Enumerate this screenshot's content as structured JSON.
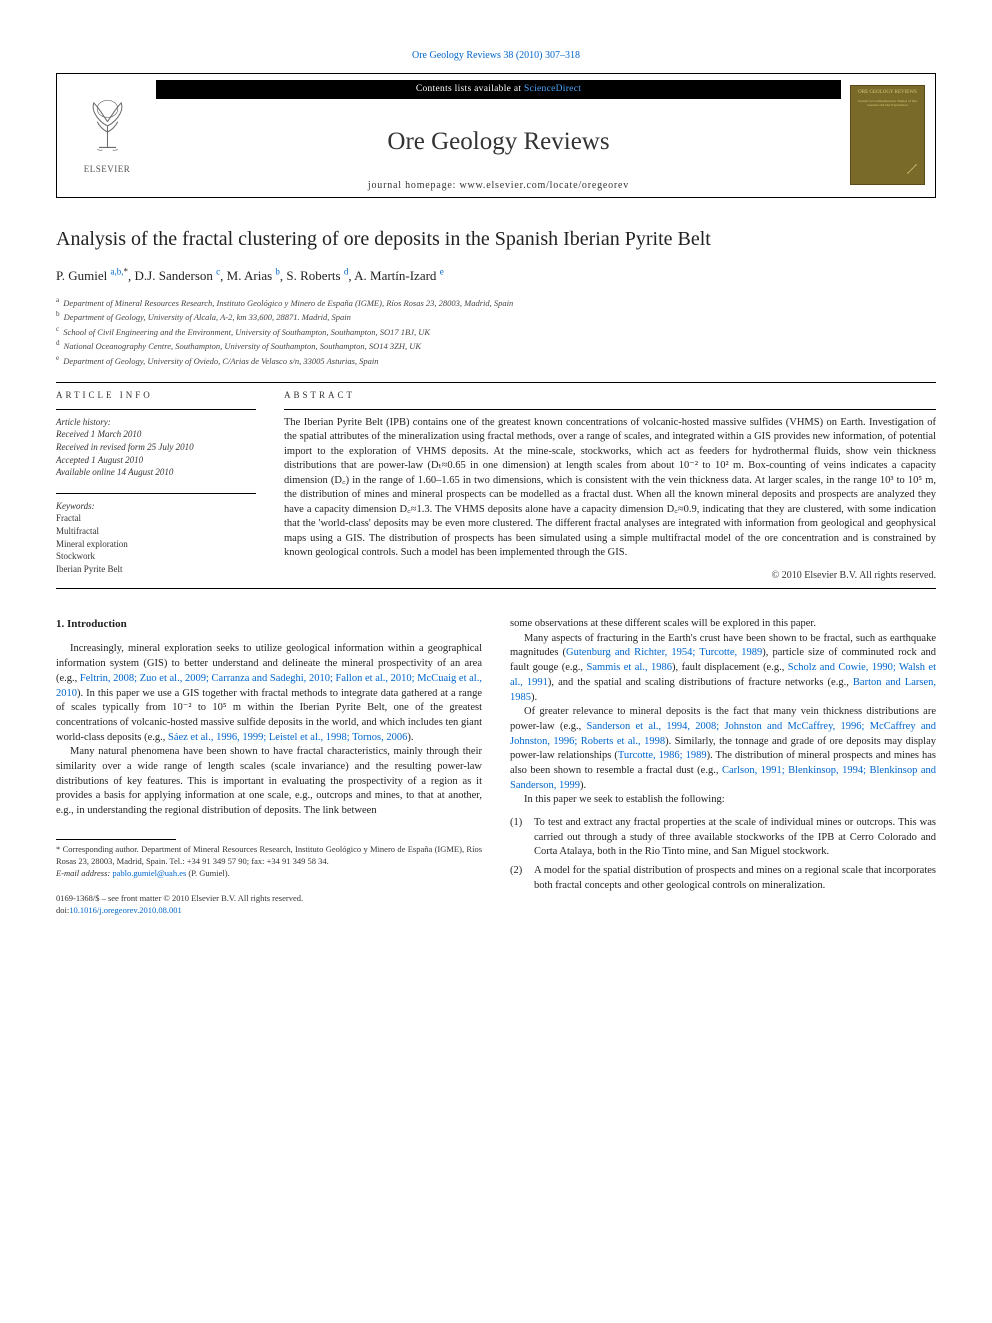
{
  "topLink": {
    "citation": "Ore Geology Reviews 38 (2010) 307–318"
  },
  "header": {
    "publisherName": "ELSEVIER",
    "contentsLine_pre": "Contents lists available at ",
    "contentsLine_link": "ScienceDirect",
    "journalTitle": "Ore Geology Reviews",
    "homepageLine": "journal homepage: www.elsevier.com/locate/oregeorev",
    "coverTitle": "ORE GEOLOGY REVIEWS",
    "coverSubtitle": "Journal for Comprehensive Studies of Ore Genesis and Ore Exploration"
  },
  "article": {
    "title": "Analysis of the fractal clustering of ore deposits in the Spanish Iberian Pyrite Belt",
    "authors": [
      {
        "name": "P. Gumiel",
        "marks": "a,b,",
        "corr": "*"
      },
      {
        "name": "D.J. Sanderson",
        "marks": "c"
      },
      {
        "name": "M. Arias",
        "marks": "b"
      },
      {
        "name": "S. Roberts",
        "marks": "d"
      },
      {
        "name": "A. Martín-Izard",
        "marks": "e"
      }
    ],
    "affiliations": [
      {
        "marker": "a",
        "text": "Department of Mineral Resources Research, Instituto Geológico y Minero de España (IGME), Ríos Rosas 23, 28003, Madrid, Spain"
      },
      {
        "marker": "b",
        "text": "Department of Geology, University of Alcala, A-2, km 33,600, 28871. Madrid, Spain"
      },
      {
        "marker": "c",
        "text": "School of Civil Engineering and the Environment, University of Southampton, Southampton, SO17 1BJ, UK"
      },
      {
        "marker": "d",
        "text": "National Oceanography Centre, Southampton, University of Southampton, Southampton, SO14 3ZH, UK"
      },
      {
        "marker": "e",
        "text": "Department of Geology, University of Oviedo, C/Arias de Velasco s/n, 33005 Asturias, Spain"
      }
    ]
  },
  "info": {
    "labelArticleInfo": "ARTICLE INFO",
    "historyLabel": "Article history:",
    "history": [
      "Received 1 March 2010",
      "Received in revised form 25 July 2010",
      "Accepted 1 August 2010",
      "Available online 14 August 2010"
    ],
    "keywordsLabel": "Keywords:",
    "keywords": [
      "Fractal",
      "Multifractal",
      "Mineral exploration",
      "Stockwork",
      "Iberian Pyrite Belt"
    ]
  },
  "abstract": {
    "label": "ABSTRACT",
    "text": "The Iberian Pyrite Belt (IPB) contains one of the greatest known concentrations of volcanic-hosted massive sulfides (VHMS) on Earth. Investigation of the spatial attributes of the mineralization using fractal methods, over a range of scales, and integrated within a GIS provides new information, of potential import to the exploration of VHMS deposits. At the mine-scale, stockworks, which act as feeders for hydrothermal fluids, show vein thickness distributions that are power-law (Dₜ≈0.65 in one dimension) at length scales from about 10⁻² to 10² m. Box-counting of veins indicates a capacity dimension (D꜀) in the range of 1.60–1.65 in two dimensions, which is consistent with the vein thickness data. At larger scales, in the range 10³ to 10⁵ m, the distribution of mines and mineral prospects can be modelled as a fractal dust. When all the known mineral deposits and prospects are analyzed they have a capacity dimension D꜀≈1.3. The VHMS deposits alone have a capacity dimension D꜀≈0.9, indicating that they are clustered, with some indication that the 'world-class' deposits may be even more clustered. The different fractal analyses are integrated with information from geological and geophysical maps using a GIS. The distribution of prospects has been simulated using a simple multifractal model of the ore concentration and is constrained by known geological controls. Such a model has been implemented through the GIS.",
    "copyright": "© 2010 Elsevier B.V. All rights reserved."
  },
  "body": {
    "introHead": "1. Introduction",
    "leftParas": [
      "Increasingly, mineral exploration seeks to utilize geological information within a geographical information system (GIS) to better understand and delineate the mineral prospectivity of an area (e.g., |Feltrin, 2008; Zuo et al., 2009; Carranza and Sadeghi, 2010; Fallon et al., 2010; McCuaig et al., 2010|). In this paper we use a GIS together with fractal methods to integrate data gathered at a range of scales typically from 10⁻² to 10⁵ m within the Iberian Pyrite Belt, one of the greatest concentrations of volcanic-hosted massive sulfide deposits in the world, and which includes ten giant world-class deposits (e.g., |Sáez et al., 1996, 1999; Leistel et al., 1998; Tornos, 2006|).",
      "Many natural phenomena have been shown to have fractal characteristics, mainly through their similarity over a wide range of length scales (scale invariance) and the resulting power-law distributions of key features. This is important in evaluating the prospectivity of a region as it provides a basis for applying information at one scale, e.g., outcrops and mines, to that at another, e.g., in understanding the regional distribution of deposits. The link between"
    ],
    "rightParas": [
      "some observations at these different scales will be explored in this paper.",
      "Many aspects of fracturing in the Earth's crust have been shown to be fractal, such as earthquake magnitudes (|Gutenburg and Richter, 1954; Turcotte, 1989|), particle size of comminuted rock and fault gouge (e.g., |Sammis et al., 1986|), fault displacement (e.g., |Scholz and Cowie, 1990; Walsh et al., 1991|), and the spatial and scaling distributions of fracture networks (e.g., |Barton and Larsen, 1985|).",
      "Of greater relevance to mineral deposits is the fact that many vein thickness distributions are power-law (e.g., |Sanderson et al., 1994, 2008; Johnston and McCaffrey, 1996; McCaffrey and Johnston, 1996; Roberts et al., 1998|). Similarly, the tonnage and grade of ore deposits may display power-law relationships (|Turcotte, 1986; 1989|). The distribution of mineral prospects and mines has also been shown to resemble a fractal dust (e.g., |Carlson, 1991; Blenkinsop, 1994; Blenkinsop and Sanderson, 1999|).",
      "In this paper we seek to establish the following:"
    ],
    "enumItems": [
      "To test and extract any fractal properties at the scale of individual mines or outcrops. This was carried out through a study of three available stockworks of the IPB at Cerro Colorado and Corta Atalaya, both in the Rio Tinto mine, and San Miguel stockwork.",
      "A model for the spatial distribution of prospects and mines on a regional scale that incorporates both fractal concepts and other geological controls on mineralization."
    ]
  },
  "footnotes": {
    "corr": "* Corresponding author. Department of Mineral Resources Research, Instituto Geológico y Minero de España (IGME), Ríos Rosas 23, 28003, Madrid, Spain. Tel.: +34 91 349 57 90; fax: +34 91 349 58 34.",
    "emailLabel": "E-mail address:",
    "email": "pablo.gumiel@uah.es",
    "emailSuffix": "(P. Gumiel)."
  },
  "bottom": {
    "line1": "0169-1368/$ – see front matter © 2010 Elsevier B.V. All rights reserved.",
    "doiLabel": "doi:",
    "doi": "10.1016/j.oregeorev.2010.08.001"
  },
  "colors": {
    "link": "#0066cc",
    "text": "#222222",
    "coverBg": "#7a6a2a",
    "coverText": "#d4c878"
  }
}
